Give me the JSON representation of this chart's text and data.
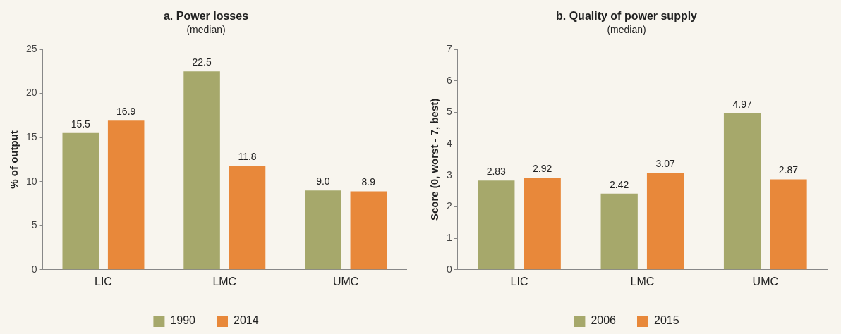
{
  "chart_data": [
    {
      "type": "bar",
      "title": "a. Power losses",
      "subtitle": "(median)",
      "ylabel": "% of output",
      "categories": [
        "LIC",
        "LMC",
        "UMC"
      ],
      "series": [
        {
          "name": "1990",
          "color": "#a6a86b",
          "values": [
            15.5,
            22.5,
            9.0
          ],
          "value_labels": [
            "15.5",
            "22.5",
            "9.0"
          ]
        },
        {
          "name": "2014",
          "color": "#e8883a",
          "values": [
            16.9,
            11.8,
            8.9
          ],
          "value_labels": [
            "16.9",
            "11.8",
            "8.9"
          ]
        }
      ],
      "ylim": [
        0,
        25
      ],
      "yticks": [
        0,
        5,
        10,
        15,
        20,
        25
      ],
      "grid": false,
      "legend": "bottom"
    },
    {
      "type": "bar",
      "title": "b. Quality of power supply",
      "subtitle": "(median)",
      "ylabel": "Score (0, worst - 7, best)",
      "categories": [
        "LIC",
        "LMC",
        "UMC"
      ],
      "series": [
        {
          "name": "2006",
          "color": "#a6a86b",
          "values": [
            2.83,
            2.42,
            4.97
          ],
          "value_labels": [
            "2.83",
            "2.42",
            "4.97"
          ]
        },
        {
          "name": "2015",
          "color": "#e8883a",
          "values": [
            2.92,
            3.07,
            2.87
          ],
          "value_labels": [
            "2.92",
            "3.07",
            "2.87"
          ]
        }
      ],
      "ylim": [
        0,
        7
      ],
      "yticks": [
        0,
        1,
        2,
        3,
        4,
        5,
        6,
        7
      ],
      "grid": false,
      "legend": "bottom"
    }
  ]
}
